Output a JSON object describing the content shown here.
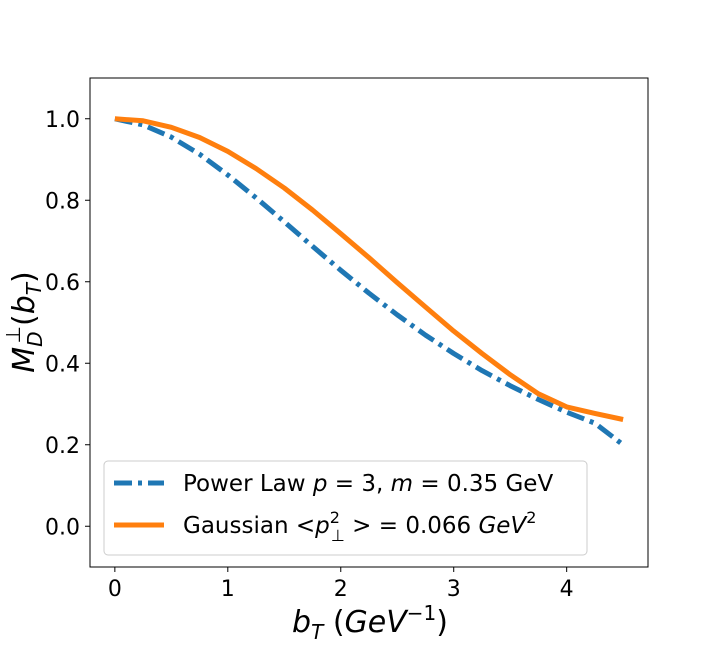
{
  "chart_data": {
    "type": "line",
    "xlabel": "b_T (GeV^-1)",
    "ylabel": "M_D^⊥(b_T)",
    "xlim": [
      -0.22,
      4.72
    ],
    "ylim": [
      -0.1,
      1.1
    ],
    "x_ticks": [
      0,
      1,
      2,
      3,
      4
    ],
    "y_ticks": [
      0.0,
      0.2,
      0.4,
      0.6,
      0.8,
      1.0
    ],
    "x_tick_labels": [
      "0",
      "1",
      "2",
      "3",
      "4"
    ],
    "y_tick_labels": [
      "0.0",
      "0.2",
      "0.4",
      "0.6",
      "0.8",
      "1.0"
    ],
    "grid": false,
    "legend_position": "lower-left",
    "series": [
      {
        "name": "Power Law p = 3, m = 0.35 GeV",
        "color": "#1f77b4",
        "style": "dashdot",
        "x": [
          0,
          0.25,
          0.5,
          0.75,
          1.0,
          1.25,
          1.5,
          1.75,
          2.0,
          2.25,
          2.5,
          2.75,
          3.0,
          3.25,
          3.5,
          3.75,
          4.0,
          4.25,
          4.5
        ],
        "y": [
          1.0,
          0.985,
          0.955,
          0.913,
          0.862,
          0.806,
          0.747,
          0.687,
          0.628,
          0.572,
          0.519,
          0.469,
          0.424,
          0.382,
          0.345,
          0.311,
          0.28,
          0.253,
          0.2
        ]
      },
      {
        "name": "Gaussian <p⊥²> = 0.066 GeV²",
        "color": "#ff7f0e",
        "style": "solid",
        "x": [
          0,
          0.25,
          0.5,
          0.75,
          1.0,
          1.25,
          1.5,
          1.75,
          2.0,
          2.25,
          2.5,
          2.75,
          3.0,
          3.25,
          3.5,
          3.75,
          4.0,
          4.25,
          4.5
        ],
        "y": [
          1.0,
          0.995,
          0.979,
          0.954,
          0.92,
          0.878,
          0.83,
          0.776,
          0.718,
          0.659,
          0.598,
          0.538,
          0.479,
          0.424,
          0.372,
          0.325,
          0.293,
          0.277,
          0.262
        ]
      }
    ]
  }
}
